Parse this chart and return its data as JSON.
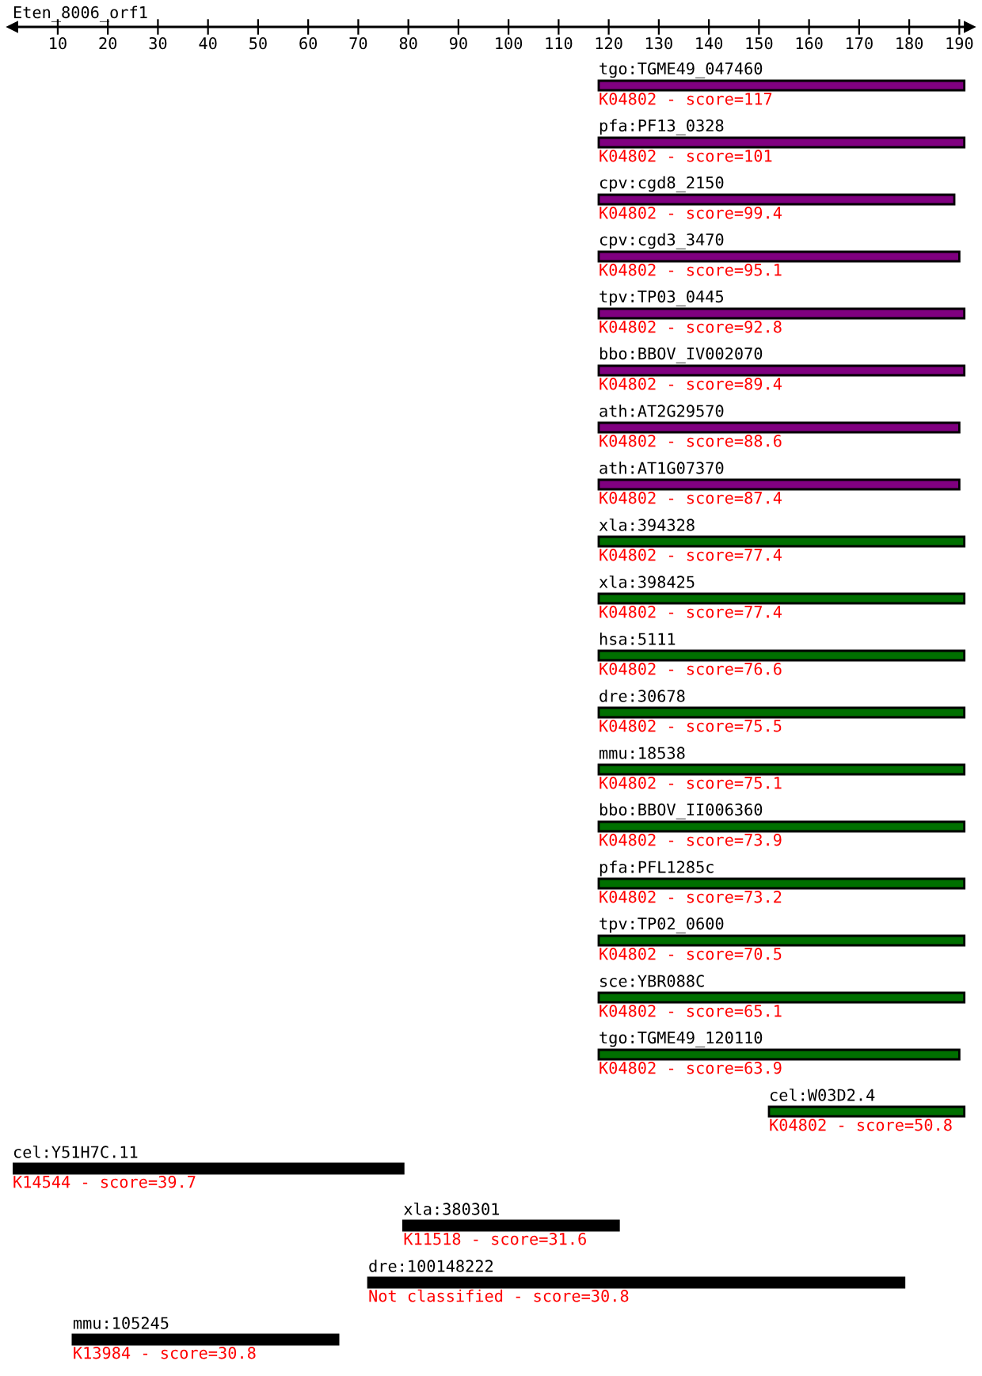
{
  "chart_data": {
    "type": "bar",
    "orientation": "horizontal",
    "title": "Eten_8006_orf1",
    "categories": [
      "tgo:TGME49_047460",
      "pfa:PF13_0328",
      "cpv:cgd8_2150",
      "cpv:cgd3_3470",
      "tpv:TP03_0445",
      "bbo:BBOV_IV002070",
      "ath:AT2G29570",
      "ath:AT1G07370",
      "xla:394328",
      "xla:398425",
      "hsa:5111",
      "dre:30678",
      "mmu:18538",
      "bbo:BBOV_II006360",
      "pfa:PFL1285c",
      "tpv:TP02_0600",
      "sce:YBR088C",
      "tgo:TGME49_120110",
      "cel:W03D2.4",
      "cel:Y51H7C.11",
      "xla:380301",
      "dre:100148222",
      "mmu:105245"
    ],
    "base": [
      118,
      118,
      118,
      118,
      118,
      118,
      118,
      118,
      118,
      118,
      118,
      118,
      118,
      118,
      118,
      118,
      118,
      118,
      152,
      1,
      79,
      72,
      13
    ],
    "values": [
      73,
      73,
      71,
      72,
      73,
      73,
      72,
      72,
      73,
      73,
      73,
      73,
      73,
      73,
      73,
      73,
      73,
      72,
      39,
      78,
      43,
      107,
      53
    ],
    "colors": [
      "#800080",
      "#800080",
      "#800080",
      "#800080",
      "#800080",
      "#800080",
      "#800080",
      "#800080",
      "#007000",
      "#007000",
      "#007000",
      "#007000",
      "#007000",
      "#007000",
      "#007000",
      "#007000",
      "#007000",
      "#007000",
      "#007000",
      "#000000",
      "#000000",
      "#000000",
      "#000000"
    ],
    "annotations": [
      "K04802 - score=117",
      "K04802 - score=101",
      "K04802 - score=99.4",
      "K04802 - score=95.1",
      "K04802 - score=92.8",
      "K04802 - score=89.4",
      "K04802 - score=88.6",
      "K04802 - score=87.4",
      "K04802 - score=77.4",
      "K04802 - score=77.4",
      "K04802 - score=76.6",
      "K04802 - score=75.5",
      "K04802 - score=75.1",
      "K04802 - score=73.9",
      "K04802 - score=73.2",
      "K04802 - score=70.5",
      "K04802 - score=65.1",
      "K04802 - score=63.9",
      "K04802 - score=50.8",
      "K14544 - score=39.7",
      "K11518 - score=31.6",
      "Not classified - score=30.8",
      "K13984 - score=30.8"
    ],
    "xlim": [
      1,
      192
    ],
    "xticks": [
      10,
      20,
      30,
      40,
      50,
      60,
      70,
      80,
      90,
      100,
      110,
      120,
      130,
      140,
      150,
      160,
      170,
      180,
      190
    ],
    "tick_labels": "x",
    "grid": false
  }
}
